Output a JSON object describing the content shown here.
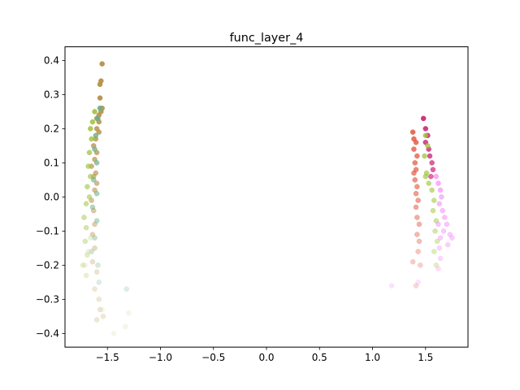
{
  "chart_data": {
    "type": "scatter",
    "title": "func_layer_4",
    "xlabel": "",
    "ylabel": "",
    "xlim": [
      -1.9,
      1.9
    ],
    "ylim": [
      -0.44,
      0.44
    ],
    "x_ticks": [
      -1.5,
      -1.0,
      -0.5,
      0.0,
      0.5,
      1.0,
      1.5
    ],
    "x_tick_labels": [
      "−1.5",
      "−1.0",
      "−0.5",
      "0.0",
      "0.5",
      "1.0",
      "1.5"
    ],
    "y_ticks": [
      -0.4,
      -0.3,
      -0.2,
      -0.1,
      0.0,
      0.1,
      0.2,
      0.3,
      0.4
    ],
    "y_tick_labels": [
      "−0.4",
      "−0.3",
      "−0.2",
      "−0.1",
      "0.0",
      "0.1",
      "0.2",
      "0.3",
      "0.4"
    ],
    "grid": false,
    "marker": "circle",
    "series": [
      {
        "color": "#b5904a",
        "points": [
          [
            -1.55,
            0.39
          ],
          [
            -1.56,
            0.34
          ],
          [
            -1.57,
            0.33
          ],
          [
            -1.57,
            0.29
          ],
          [
            -1.55,
            0.26
          ],
          [
            -1.56,
            0.25
          ],
          [
            -1.58,
            0.24
          ],
          [
            -1.6,
            0.23
          ],
          [
            -1.58,
            0.22
          ],
          [
            -1.6,
            0.2
          ],
          [
            -1.58,
            0.19
          ],
          [
            -1.61,
            0.17
          ],
          [
            -1.63,
            0.15
          ],
          [
            -1.6,
            0.13
          ],
          [
            -1.62,
            0.11
          ],
          [
            -1.65,
            0.09
          ],
          [
            -1.61,
            0.07
          ],
          [
            -1.63,
            0.06
          ],
          [
            -1.6,
            0.04
          ],
          [
            -1.62,
            0.02
          ],
          [
            -1.65,
            -0.01
          ],
          [
            -1.63,
            -0.04
          ],
          [
            -1.62,
            -0.08
          ],
          [
            -1.64,
            -0.11
          ],
          [
            -1.62,
            -0.15
          ],
          [
            -1.64,
            -0.19
          ],
          [
            -1.6,
            -0.22
          ],
          [
            -1.62,
            -0.27
          ],
          [
            -1.58,
            -0.3
          ],
          [
            -1.57,
            -0.33
          ],
          [
            -1.54,
            -0.35
          ],
          [
            -1.6,
            -0.36
          ]
        ]
      },
      {
        "color": "#9dc23c",
        "points": [
          [
            -1.62,
            0.25
          ],
          [
            -1.64,
            0.22
          ],
          [
            -1.66,
            0.2
          ],
          [
            -1.65,
            0.17
          ],
          [
            -1.67,
            0.13
          ],
          [
            -1.68,
            0.09
          ],
          [
            -1.66,
            0.06
          ],
          [
            -1.69,
            0.03
          ],
          [
            -1.67,
            0.0
          ],
          [
            -1.7,
            -0.02
          ],
          [
            -1.72,
            -0.06
          ],
          [
            -1.7,
            -0.09
          ],
          [
            -1.71,
            -0.13
          ],
          [
            -1.69,
            -0.17
          ],
          [
            -1.73,
            -0.2
          ],
          [
            -1.7,
            -0.23
          ]
        ]
      },
      {
        "color": "#6aae8a",
        "points": [
          [
            -1.57,
            0.26
          ],
          [
            -1.59,
            0.23
          ],
          [
            -1.61,
            0.18
          ],
          [
            -1.62,
            0.14
          ],
          [
            -1.6,
            0.1
          ],
          [
            -1.63,
            0.05
          ],
          [
            -1.6,
            0.01
          ],
          [
            -1.64,
            -0.03
          ],
          [
            -1.6,
            -0.07
          ],
          [
            -1.62,
            -0.12
          ],
          [
            -1.65,
            -0.16
          ],
          [
            -1.59,
            -0.2
          ],
          [
            -1.58,
            -0.25
          ],
          [
            -1.32,
            -0.27
          ]
        ]
      },
      {
        "color": "#cfd99a",
        "points": [
          [
            -1.3,
            -0.34
          ],
          [
            -1.33,
            -0.38
          ],
          [
            -1.44,
            -0.4
          ],
          [
            -1.55,
            -0.33
          ],
          [
            -1.68,
            -0.16
          ],
          [
            -1.71,
            -0.2
          ],
          [
            -1.66,
            -0.12
          ]
        ]
      },
      {
        "color": "#c9186c",
        "points": [
          [
            1.48,
            0.23
          ],
          [
            1.5,
            0.2
          ],
          [
            1.52,
            0.18
          ],
          [
            1.5,
            0.16
          ],
          [
            1.53,
            0.14
          ],
          [
            1.54,
            0.12
          ],
          [
            1.56,
            0.1
          ],
          [
            1.57,
            0.08
          ],
          [
            1.55,
            0.06
          ]
        ]
      },
      {
        "color": "#e0503a",
        "points": [
          [
            1.38,
            0.19
          ],
          [
            1.39,
            0.17
          ],
          [
            1.41,
            0.16
          ],
          [
            1.39,
            0.14
          ],
          [
            1.42,
            0.12
          ],
          [
            1.4,
            0.1
          ],
          [
            1.41,
            0.08
          ],
          [
            1.39,
            0.07
          ],
          [
            1.4,
            0.05
          ],
          [
            1.42,
            0.03
          ],
          [
            1.41,
            0.01
          ],
          [
            1.43,
            -0.01
          ],
          [
            1.41,
            -0.03
          ],
          [
            1.42,
            -0.06
          ],
          [
            1.44,
            -0.08
          ],
          [
            1.42,
            -0.11
          ],
          [
            1.44,
            -0.13
          ],
          [
            1.43,
            -0.16
          ],
          [
            1.45,
            -0.2
          ],
          [
            1.38,
            -0.19
          ],
          [
            1.41,
            -0.26
          ]
        ]
      },
      {
        "color": "#9cc234",
        "points": [
          [
            1.5,
            0.18
          ],
          [
            1.52,
            0.15
          ],
          [
            1.49,
            0.12
          ],
          [
            1.51,
            0.07
          ],
          [
            1.5,
            0.06
          ],
          [
            1.53,
            0.04
          ],
          [
            1.56,
            0.02
          ],
          [
            1.58,
            -0.01
          ],
          [
            1.57,
            -0.04
          ],
          [
            1.6,
            -0.07
          ],
          [
            1.59,
            -0.1
          ],
          [
            1.61,
            -0.13
          ],
          [
            1.58,
            -0.16
          ],
          [
            1.6,
            -0.2
          ]
        ]
      },
      {
        "color": "#f27ef5",
        "points": [
          [
            1.6,
            0.06
          ],
          [
            1.62,
            0.04
          ],
          [
            1.64,
            0.02
          ],
          [
            1.65,
            0.0
          ],
          [
            1.63,
            -0.02
          ],
          [
            1.66,
            -0.04
          ],
          [
            1.68,
            -0.06
          ],
          [
            1.7,
            -0.08
          ],
          [
            1.67,
            -0.1
          ],
          [
            1.73,
            -0.11
          ],
          [
            1.75,
            -0.12
          ],
          [
            1.71,
            -0.14
          ],
          [
            1.62,
            -0.08
          ],
          [
            1.64,
            -0.12
          ],
          [
            1.63,
            -0.15
          ],
          [
            1.64,
            -0.18
          ],
          [
            1.62,
            -0.21
          ],
          [
            1.43,
            -0.25
          ],
          [
            1.18,
            -0.26
          ]
        ]
      }
    ]
  }
}
